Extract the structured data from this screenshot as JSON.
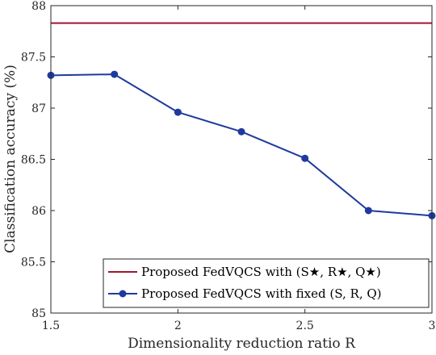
{
  "chart_data": {
    "type": "line",
    "title": "",
    "xlabel": "Dimensionality reduction ratio R",
    "ylabel": "Classification accuracy (%)",
    "xlim": [
      1.5,
      3
    ],
    "ylim": [
      85,
      88
    ],
    "xticks": [
      "1.5",
      "2",
      "2.5",
      "3"
    ],
    "yticks": [
      "85",
      "85.5",
      "86",
      "86.5",
      "87",
      "87.5",
      "88"
    ],
    "grid": false,
    "legend_position": "bottom-right",
    "series": [
      {
        "name": "Proposed FedVQCS with (S★, R★, Q★)",
        "style": "line",
        "color": "#A2142F",
        "x": [
          1.5,
          3
        ],
        "y": [
          87.83,
          87.83
        ]
      },
      {
        "name": "Proposed FedVQCS with fixed (S, R, Q)",
        "style": "line-marker",
        "color": "#1F3A9E",
        "x": [
          1.5,
          1.75,
          2,
          2.25,
          2.5,
          2.75,
          3
        ],
        "y": [
          87.32,
          87.33,
          86.96,
          86.77,
          86.51,
          86.0,
          85.95
        ]
      }
    ]
  }
}
